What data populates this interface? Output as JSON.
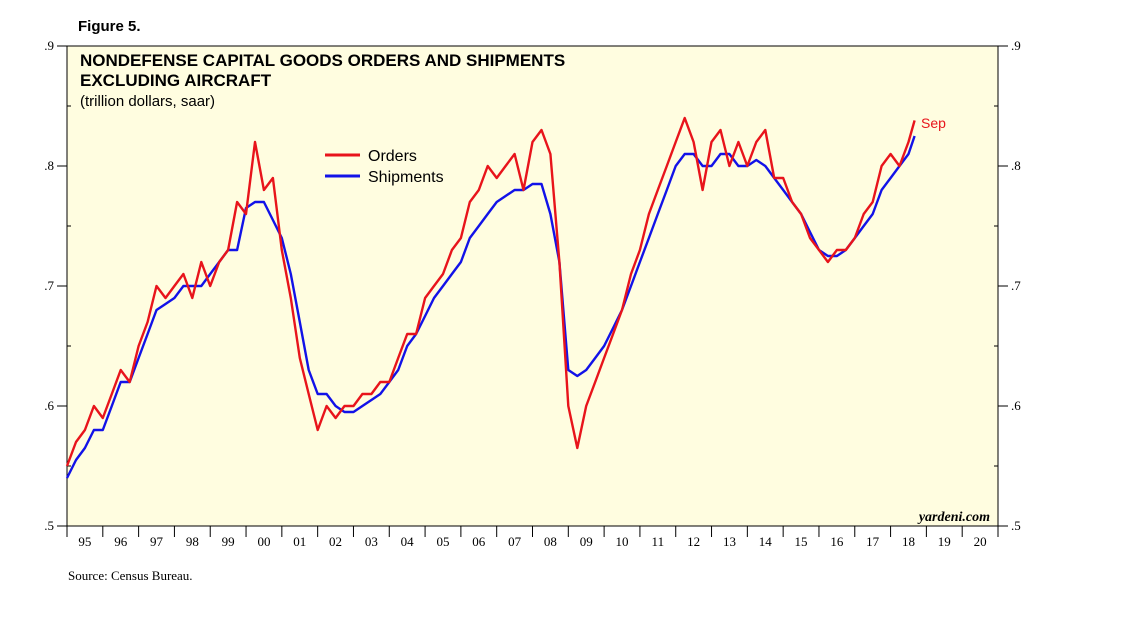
{
  "figure_label": "Figure 5.",
  "source": "Source: Census Bureau.",
  "brand": "yardeni.com",
  "chart_data": {
    "type": "line",
    "title": "NONDEFENSE CAPITAL GOODS ORDERS AND SHIPMENTS EXCLUDING AIRCRAFT",
    "title_lines": [
      "NONDEFENSE CAPITAL GOODS ORDERS AND SHIPMENTS",
      "EXCLUDING AIRCRAFT"
    ],
    "subtitle": "(trillion dollars, saar)",
    "xlim": [
      1995,
      2021
    ],
    "ylim": [
      0.5,
      0.9
    ],
    "y_ticks": [
      0.5,
      0.6,
      0.7,
      0.8,
      0.9
    ],
    "y_tick_labels": [
      ".5",
      ".6",
      ".7",
      ".8",
      ".9"
    ],
    "x_tick_labels": [
      "95",
      "96",
      "97",
      "98",
      "99",
      "00",
      "01",
      "02",
      "03",
      "04",
      "05",
      "06",
      "07",
      "08",
      "09",
      "10",
      "11",
      "12",
      "13",
      "14",
      "15",
      "16",
      "17",
      "18",
      "19",
      "20"
    ],
    "legend_position": "upper-center",
    "end_label": "Sep",
    "grid": false,
    "background": "#fffde0",
    "series": [
      {
        "name": "Orders",
        "color": "#e8141b",
        "x": [
          1995.0,
          1995.25,
          1995.5,
          1995.75,
          1996.0,
          1996.25,
          1996.5,
          1996.75,
          1997.0,
          1997.25,
          1997.5,
          1997.75,
          1998.0,
          1998.25,
          1998.5,
          1998.75,
          1999.0,
          1999.25,
          1999.5,
          1999.75,
          2000.0,
          2000.25,
          2000.5,
          2000.75,
          2001.0,
          2001.25,
          2001.5,
          2001.75,
          2002.0,
          2002.25,
          2002.5,
          2002.75,
          2003.0,
          2003.25,
          2003.5,
          2003.75,
          2004.0,
          2004.25,
          2004.5,
          2004.75,
          2005.0,
          2005.25,
          2005.5,
          2005.75,
          2006.0,
          2006.25,
          2006.5,
          2006.75,
          2007.0,
          2007.25,
          2007.5,
          2007.75,
          2008.0,
          2008.25,
          2008.5,
          2008.75,
          2009.0,
          2009.25,
          2009.5,
          2009.75,
          2010.0,
          2010.25,
          2010.5,
          2010.75,
          2011.0,
          2011.25,
          2011.5,
          2011.75,
          2012.0,
          2012.25,
          2012.5,
          2012.75,
          2013.0,
          2013.25,
          2013.5,
          2013.75,
          2014.0,
          2014.25,
          2014.5,
          2014.75,
          2015.0,
          2015.25,
          2015.5,
          2015.75,
          2016.0,
          2016.25,
          2016.5,
          2016.75,
          2017.0,
          2017.25,
          2017.5,
          2017.75,
          2018.0,
          2018.25,
          2018.5,
          2018.67
        ],
        "y": [
          0.55,
          0.57,
          0.58,
          0.6,
          0.59,
          0.61,
          0.63,
          0.62,
          0.65,
          0.67,
          0.7,
          0.69,
          0.7,
          0.71,
          0.69,
          0.72,
          0.7,
          0.72,
          0.73,
          0.77,
          0.76,
          0.82,
          0.78,
          0.79,
          0.73,
          0.69,
          0.64,
          0.61,
          0.58,
          0.6,
          0.59,
          0.6,
          0.6,
          0.61,
          0.61,
          0.62,
          0.62,
          0.64,
          0.66,
          0.66,
          0.69,
          0.7,
          0.71,
          0.73,
          0.74,
          0.77,
          0.78,
          0.8,
          0.79,
          0.8,
          0.81,
          0.78,
          0.82,
          0.83,
          0.81,
          0.72,
          0.6,
          0.565,
          0.6,
          0.62,
          0.64,
          0.66,
          0.68,
          0.71,
          0.73,
          0.76,
          0.78,
          0.8,
          0.82,
          0.84,
          0.82,
          0.78,
          0.82,
          0.83,
          0.8,
          0.82,
          0.8,
          0.82,
          0.83,
          0.79,
          0.79,
          0.77,
          0.76,
          0.74,
          0.73,
          0.72,
          0.73,
          0.73,
          0.74,
          0.76,
          0.77,
          0.8,
          0.81,
          0.8,
          0.82,
          0.838
        ]
      },
      {
        "name": "Shipments",
        "color": "#1212e8",
        "x": [
          1995.0,
          1995.25,
          1995.5,
          1995.75,
          1996.0,
          1996.25,
          1996.5,
          1996.75,
          1997.0,
          1997.25,
          1997.5,
          1997.75,
          1998.0,
          1998.25,
          1998.5,
          1998.75,
          1999.0,
          1999.25,
          1999.5,
          1999.75,
          2000.0,
          2000.25,
          2000.5,
          2000.75,
          2001.0,
          2001.25,
          2001.5,
          2001.75,
          2002.0,
          2002.25,
          2002.5,
          2002.75,
          2003.0,
          2003.25,
          2003.5,
          2003.75,
          2004.0,
          2004.25,
          2004.5,
          2004.75,
          2005.0,
          2005.25,
          2005.5,
          2005.75,
          2006.0,
          2006.25,
          2006.5,
          2006.75,
          2007.0,
          2007.25,
          2007.5,
          2007.75,
          2008.0,
          2008.25,
          2008.5,
          2008.75,
          2009.0,
          2009.25,
          2009.5,
          2009.75,
          2010.0,
          2010.25,
          2010.5,
          2010.75,
          2011.0,
          2011.25,
          2011.5,
          2011.75,
          2012.0,
          2012.25,
          2012.5,
          2012.75,
          2013.0,
          2013.25,
          2013.5,
          2013.75,
          2014.0,
          2014.25,
          2014.5,
          2014.75,
          2015.0,
          2015.25,
          2015.5,
          2015.75,
          2016.0,
          2016.25,
          2016.5,
          2016.75,
          2017.0,
          2017.25,
          2017.5,
          2017.75,
          2018.0,
          2018.25,
          2018.5,
          2018.67
        ],
        "y": [
          0.54,
          0.555,
          0.565,
          0.58,
          0.58,
          0.6,
          0.62,
          0.62,
          0.64,
          0.66,
          0.68,
          0.685,
          0.69,
          0.7,
          0.7,
          0.7,
          0.71,
          0.72,
          0.73,
          0.73,
          0.765,
          0.77,
          0.77,
          0.755,
          0.74,
          0.71,
          0.67,
          0.63,
          0.61,
          0.61,
          0.6,
          0.595,
          0.595,
          0.6,
          0.605,
          0.61,
          0.62,
          0.63,
          0.65,
          0.66,
          0.675,
          0.69,
          0.7,
          0.71,
          0.72,
          0.74,
          0.75,
          0.76,
          0.77,
          0.775,
          0.78,
          0.78,
          0.785,
          0.785,
          0.76,
          0.72,
          0.63,
          0.625,
          0.63,
          0.64,
          0.65,
          0.665,
          0.68,
          0.7,
          0.72,
          0.74,
          0.76,
          0.78,
          0.8,
          0.81,
          0.81,
          0.8,
          0.8,
          0.81,
          0.81,
          0.8,
          0.8,
          0.805,
          0.8,
          0.79,
          0.78,
          0.77,
          0.76,
          0.745,
          0.73,
          0.725,
          0.725,
          0.73,
          0.74,
          0.75,
          0.76,
          0.78,
          0.79,
          0.8,
          0.81,
          0.825
        ]
      }
    ]
  }
}
